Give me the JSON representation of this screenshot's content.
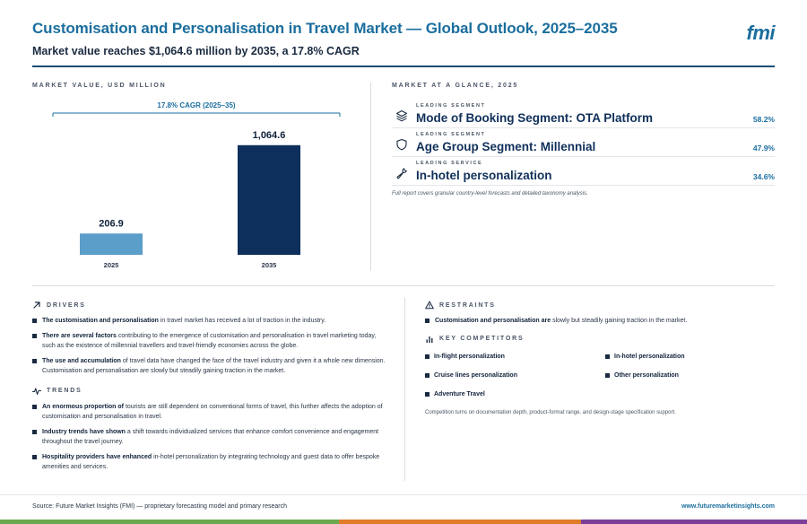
{
  "header": {
    "title": "Customisation and Personalisation in Travel Market — Global Outlook, 2025–2035",
    "subtitle": "Market value reaches $1,064.6 million by 2035, a 17.8% CAGR",
    "logo": "fmi"
  },
  "market_value": {
    "label": "MARKET VALUE, USD MILLION"
  },
  "chart_data": {
    "type": "bar",
    "categories": [
      "2025",
      "2035"
    ],
    "values": [
      206.9,
      1064.6
    ],
    "value_labels": [
      "206.9",
      "1,064.6"
    ],
    "annotation": "17.8% CAGR (2025–35)",
    "colors": [
      "#5b9ec9",
      "#0d2f5c"
    ],
    "ylim": [
      0,
      1150
    ]
  },
  "glance": {
    "label": "MARKET AT A GLANCE, 2025",
    "items": [
      {
        "kicker": "LEADING SEGMENT",
        "name": "Mode of Booking Segment: OTA Platform",
        "value": "58.2%",
        "icon": "layers-icon"
      },
      {
        "kicker": "LEADING SEGMENT",
        "name": "Age Group Segment: Millennial",
        "value": "47.9%",
        "icon": "shield-icon"
      },
      {
        "kicker": "LEADING SERVICE",
        "name": "In-hotel personalization",
        "value": "34.6%",
        "icon": "wrench-icon"
      }
    ],
    "note": "Full report covers granular country-level forecasts and detailed taxonomy analysis."
  },
  "drivers": {
    "label": "DRIVERS",
    "items": [
      {
        "bold": "The customisation and personalisation",
        "text": " in travel market has received a lot of traction in the industry."
      },
      {
        "bold": "There are several factors",
        "text": " contributing to the emergence of customisation and personalisation in travel marketing today, such as the existence of millennial travellers and travel-friendly economies across the globe."
      },
      {
        "bold": "The use and accumulation",
        "text": " of travel data have changed the face of the travel industry and given it a whole new dimension. Customisation and personalisation are slowly but steadily gaining traction in the market."
      }
    ]
  },
  "trends": {
    "label": "TRENDS",
    "items": [
      {
        "bold": "An enormous proportion of",
        "text": " tourists are still dependent on conventional forms of travel, this further affects the adoption of customisation and personalisation in travel."
      },
      {
        "bold": "Industry trends have shown",
        "text": " a shift towards individualized services that enhance comfort convenience and engagement throughout the travel journey."
      },
      {
        "bold": "Hospitality providers have enhanced",
        "text": " in-hotel personalization by integrating technology and guest data to offer bespoke amenities and services."
      }
    ]
  },
  "restraints": {
    "label": "RESTRAINTS",
    "items": [
      {
        "bold": "Customisation and personalisation are",
        "text": " slowly but steadily gaining traction in the market."
      }
    ]
  },
  "competitors": {
    "label": "KEY COMPETITORS",
    "items": [
      "In-flight personalization",
      "In-hotel personalization",
      "Cruise lines personalization",
      "Other personalization",
      "Adventure Travel"
    ],
    "note": "Competition turns on documentation depth, product-format range, and design-stage specification support."
  },
  "footer": {
    "source": "Source: Future Market Insights (FMI) — proprietary forecasting model and primary research",
    "url": "www.futuremarketinsights.com",
    "bar_colors": [
      "#6aa84f",
      "#e07b2a",
      "#7b3f98"
    ]
  }
}
